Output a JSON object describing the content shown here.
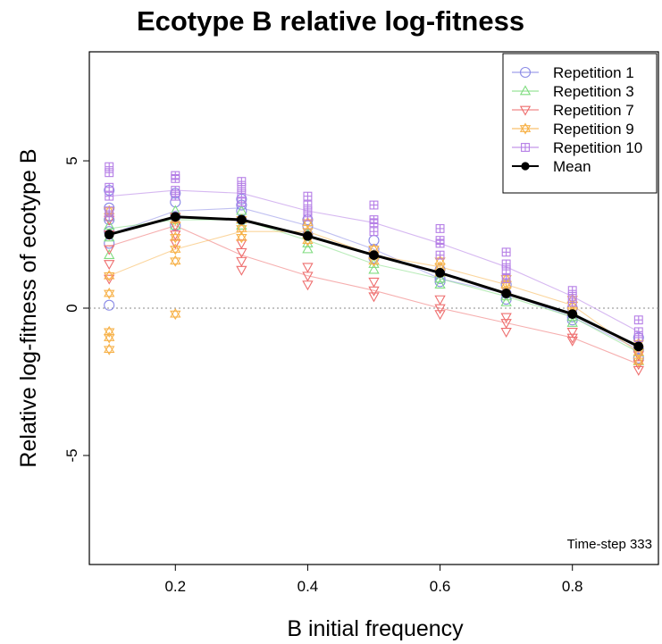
{
  "chart_data": {
    "type": "line",
    "title": "Ecotype B relative log-fitness",
    "xlabel": "B initial frequency",
    "ylabel": "Relative log-fitness of ecotype B",
    "annotation": "Time-step 333",
    "xlim": [
      0.07,
      0.93
    ],
    "ylim": [
      -8.7,
      8.7
    ],
    "x_ticks": [
      0.2,
      0.4,
      0.6,
      0.8
    ],
    "x_tick_labels": [
      "0.2",
      "0.4",
      "0.6",
      "0.8"
    ],
    "y_ticks": [
      -5,
      0,
      5
    ],
    "y_tick_labels": [
      "-5",
      "0",
      "5"
    ],
    "reference_line": 0,
    "grid": false,
    "legend_position": "top-right",
    "x": [
      0.1,
      0.2,
      0.3,
      0.4,
      0.5,
      0.6,
      0.7,
      0.8,
      0.9
    ],
    "series": [
      {
        "name": "Repetition 1",
        "color": "#8a8ae6",
        "marker": "circle",
        "values": [
          2.5,
          3.3,
          3.4,
          2.8,
          2.0,
          1.0,
          0.5,
          -0.3,
          -1.4
        ],
        "points": [
          [
            0.1,
            4.0
          ],
          [
            0.1,
            3.4
          ],
          [
            0.1,
            3.0
          ],
          [
            0.1,
            2.6
          ],
          [
            0.1,
            2.2
          ],
          [
            0.1,
            0.1
          ],
          [
            0.2,
            3.9
          ],
          [
            0.2,
            3.6
          ],
          [
            0.2,
            3.1
          ],
          [
            0.2,
            2.8
          ],
          [
            0.3,
            3.7
          ],
          [
            0.3,
            3.5
          ],
          [
            0.3,
            3.3
          ],
          [
            0.3,
            3.0
          ],
          [
            0.4,
            3.0
          ],
          [
            0.4,
            2.8
          ],
          [
            0.4,
            2.5
          ],
          [
            0.5,
            2.3
          ],
          [
            0.5,
            2.0
          ],
          [
            0.5,
            1.7
          ],
          [
            0.6,
            1.3
          ],
          [
            0.6,
            1.0
          ],
          [
            0.6,
            0.9
          ],
          [
            0.7,
            0.8
          ],
          [
            0.7,
            0.5
          ],
          [
            0.7,
            0.3
          ],
          [
            0.8,
            0.0
          ],
          [
            0.8,
            -0.3
          ],
          [
            0.8,
            -0.4
          ],
          [
            0.9,
            -1.0
          ],
          [
            0.9,
            -1.4
          ],
          [
            0.9,
            -1.7
          ]
        ]
      },
      {
        "name": "Repetition 3",
        "color": "#7fdc7f",
        "marker": "triangle-up",
        "values": [
          2.7,
          3.0,
          3.0,
          2.3,
          1.5,
          1.0,
          0.4,
          -0.3,
          -1.5
        ],
        "points": [
          [
            0.1,
            3.1
          ],
          [
            0.1,
            2.8
          ],
          [
            0.1,
            2.4
          ],
          [
            0.1,
            1.8
          ],
          [
            0.2,
            3.3
          ],
          [
            0.2,
            3.0
          ],
          [
            0.2,
            2.8
          ],
          [
            0.3,
            3.3
          ],
          [
            0.3,
            3.0
          ],
          [
            0.3,
            2.8
          ],
          [
            0.4,
            2.5
          ],
          [
            0.4,
            2.2
          ],
          [
            0.4,
            2.0
          ],
          [
            0.5,
            1.8
          ],
          [
            0.5,
            1.5
          ],
          [
            0.5,
            1.3
          ],
          [
            0.6,
            1.2
          ],
          [
            0.6,
            1.0
          ],
          [
            0.6,
            0.8
          ],
          [
            0.7,
            0.6
          ],
          [
            0.7,
            0.4
          ],
          [
            0.7,
            0.2
          ],
          [
            0.8,
            -0.1
          ],
          [
            0.8,
            -0.3
          ],
          [
            0.8,
            -0.5
          ],
          [
            0.9,
            -1.3
          ],
          [
            0.9,
            -1.5
          ],
          [
            0.9,
            -1.8
          ]
        ]
      },
      {
        "name": "Repetition 7",
        "color": "#ee6d6d",
        "marker": "triangle-down",
        "values": [
          2.1,
          2.8,
          1.8,
          1.1,
          0.6,
          0.0,
          -0.5,
          -1.0,
          -1.9
        ],
        "points": [
          [
            0.1,
            3.0
          ],
          [
            0.1,
            2.5
          ],
          [
            0.1,
            2.0
          ],
          [
            0.1,
            1.5
          ],
          [
            0.1,
            1.0
          ],
          [
            0.2,
            3.1
          ],
          [
            0.2,
            2.8
          ],
          [
            0.2,
            2.5
          ],
          [
            0.2,
            2.2
          ],
          [
            0.3,
            2.2
          ],
          [
            0.3,
            1.9
          ],
          [
            0.3,
            1.6
          ],
          [
            0.3,
            1.3
          ],
          [
            0.4,
            1.4
          ],
          [
            0.4,
            1.1
          ],
          [
            0.4,
            0.8
          ],
          [
            0.5,
            0.9
          ],
          [
            0.5,
            0.6
          ],
          [
            0.5,
            0.4
          ],
          [
            0.6,
            0.3
          ],
          [
            0.6,
            0.0
          ],
          [
            0.6,
            -0.2
          ],
          [
            0.7,
            -0.3
          ],
          [
            0.7,
            -0.5
          ],
          [
            0.7,
            -0.8
          ],
          [
            0.8,
            -0.8
          ],
          [
            0.8,
            -1.0
          ],
          [
            0.8,
            -1.1
          ],
          [
            0.9,
            -1.6
          ],
          [
            0.9,
            -1.9
          ],
          [
            0.9,
            -2.1
          ]
        ]
      },
      {
        "name": "Repetition 9",
        "color": "#f7b24a",
        "marker": "star",
        "values": [
          1.1,
          2.0,
          2.6,
          2.6,
          1.8,
          1.4,
          0.8,
          0.1,
          -1.5
        ],
        "points": [
          [
            0.1,
            3.3
          ],
          [
            0.1,
            1.1
          ],
          [
            0.1,
            0.5
          ],
          [
            0.1,
            -0.8
          ],
          [
            0.1,
            -1.0
          ],
          [
            0.1,
            -1.4
          ],
          [
            0.2,
            3.0
          ],
          [
            0.2,
            2.4
          ],
          [
            0.2,
            2.0
          ],
          [
            0.2,
            1.6
          ],
          [
            0.2,
            -0.2
          ],
          [
            0.3,
            3.0
          ],
          [
            0.3,
            2.7
          ],
          [
            0.3,
            2.4
          ],
          [
            0.4,
            2.9
          ],
          [
            0.4,
            2.6
          ],
          [
            0.4,
            2.3
          ],
          [
            0.5,
            2.0
          ],
          [
            0.5,
            1.8
          ],
          [
            0.5,
            1.6
          ],
          [
            0.6,
            1.6
          ],
          [
            0.6,
            1.4
          ],
          [
            0.6,
            1.2
          ],
          [
            0.7,
            1.0
          ],
          [
            0.7,
            0.8
          ],
          [
            0.7,
            0.6
          ],
          [
            0.8,
            0.3
          ],
          [
            0.8,
            0.1
          ],
          [
            0.8,
            -0.1
          ],
          [
            0.9,
            -1.2
          ],
          [
            0.9,
            -1.5
          ],
          [
            0.9,
            -1.8
          ]
        ]
      },
      {
        "name": "Repetition 10",
        "color": "#b57ee6",
        "marker": "square-plus",
        "values": [
          3.8,
          4.0,
          3.9,
          3.3,
          2.9,
          2.2,
          1.4,
          0.4,
          -0.8
        ],
        "points": [
          [
            0.1,
            4.8
          ],
          [
            0.1,
            4.6
          ],
          [
            0.1,
            4.1
          ],
          [
            0.1,
            3.8
          ],
          [
            0.1,
            3.3
          ],
          [
            0.1,
            3.1
          ],
          [
            0.2,
            4.5
          ],
          [
            0.2,
            4.4
          ],
          [
            0.2,
            4.0
          ],
          [
            0.2,
            3.8
          ],
          [
            0.3,
            4.3
          ],
          [
            0.3,
            4.1
          ],
          [
            0.3,
            3.9
          ],
          [
            0.3,
            3.6
          ],
          [
            0.4,
            3.8
          ],
          [
            0.4,
            3.5
          ],
          [
            0.4,
            3.3
          ],
          [
            0.4,
            3.1
          ],
          [
            0.5,
            3.5
          ],
          [
            0.5,
            3.0
          ],
          [
            0.5,
            2.9
          ],
          [
            0.5,
            2.6
          ],
          [
            0.6,
            2.7
          ],
          [
            0.6,
            2.3
          ],
          [
            0.6,
            2.2
          ],
          [
            0.6,
            1.8
          ],
          [
            0.7,
            1.9
          ],
          [
            0.7,
            1.5
          ],
          [
            0.7,
            1.3
          ],
          [
            0.7,
            1.0
          ],
          [
            0.8,
            0.6
          ],
          [
            0.8,
            0.4
          ],
          [
            0.8,
            0.2
          ],
          [
            0.9,
            -0.4
          ],
          [
            0.9,
            -0.8
          ],
          [
            0.9,
            -1.0
          ]
        ]
      },
      {
        "name": "Mean",
        "color": "#000000",
        "marker": "filled-circle",
        "values": [
          2.5,
          3.1,
          3.0,
          2.45,
          1.8,
          1.2,
          0.5,
          -0.2,
          -1.3
        ],
        "points": []
      }
    ]
  }
}
